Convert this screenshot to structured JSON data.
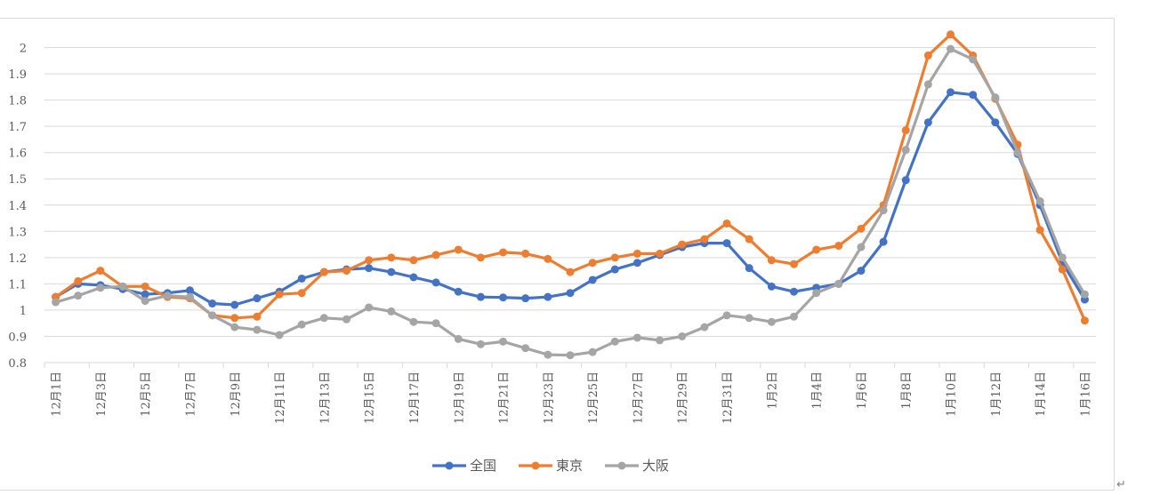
{
  "chart_data": {
    "type": "line",
    "title": "",
    "xlabel": "",
    "ylabel": "",
    "ylim": [
      0.8,
      2.1
    ],
    "yticks": [
      "0.8",
      "0.9",
      "1",
      "1.1",
      "1.2",
      "1.3",
      "1.4",
      "1.5",
      "1.6",
      "1.7",
      "1.8",
      "1.9",
      "2"
    ],
    "grid": "horizontal",
    "legend_position": "bottom",
    "categories": [
      "12月1日",
      "12月2日",
      "12月3日",
      "12月4日",
      "12月5日",
      "12月6日",
      "12月7日",
      "12月8日",
      "12月9日",
      "12月10日",
      "12月11日",
      "12月12日",
      "12月13日",
      "12月14日",
      "12月15日",
      "12月16日",
      "12月17日",
      "12月18日",
      "12月19日",
      "12月20日",
      "12月21日",
      "12月22日",
      "12月23日",
      "12月24日",
      "12月25日",
      "12月26日",
      "12月27日",
      "12月28日",
      "12月29日",
      "12月30日",
      "12月31日",
      "1月1日",
      "1月2日",
      "1月3日",
      "1月4日",
      "1月5日",
      "1月6日",
      "1月7日",
      "1月8日",
      "1月9日",
      "1月10日",
      "1月11日",
      "1月12日",
      "1月13日",
      "1月14日",
      "1月15日",
      "1月16日"
    ],
    "x_tick_labels": [
      "12月1日",
      "12月3日",
      "12月5日",
      "12月7日",
      "12月9日",
      "12月11日",
      "12月13日",
      "12月15日",
      "12月17日",
      "12月19日",
      "12月21日",
      "12月23日",
      "12月25日",
      "12月27日",
      "12月29日",
      "12月31日",
      "1月2日",
      "1月4日",
      "1月6日",
      "1月8日",
      "1月10日",
      "1月12日",
      "1月14日",
      "1月16日"
    ],
    "series": [
      {
        "name": "全国",
        "color": "#4472c4",
        "values": [
          1.05,
          1.1,
          1.095,
          1.08,
          1.06,
          1.065,
          1.075,
          1.025,
          1.02,
          1.045,
          1.07,
          1.12,
          1.145,
          1.155,
          1.16,
          1.145,
          1.125,
          1.105,
          1.07,
          1.05,
          1.048,
          1.045,
          1.05,
          1.065,
          1.115,
          1.155,
          1.18,
          1.21,
          1.24,
          1.255,
          1.255,
          1.16,
          1.09,
          1.07,
          1.085,
          1.1,
          1.15,
          1.26,
          1.495,
          1.715,
          1.83,
          1.82,
          1.715,
          1.595,
          1.4,
          1.18,
          1.04
        ]
      },
      {
        "name": "東京",
        "color": "#ed7d31",
        "values": [
          1.05,
          1.11,
          1.15,
          1.09,
          1.09,
          1.05,
          1.045,
          0.98,
          0.97,
          0.975,
          1.06,
          1.065,
          1.145,
          1.15,
          1.19,
          1.2,
          1.19,
          1.21,
          1.23,
          1.2,
          1.22,
          1.215,
          1.195,
          1.145,
          1.18,
          1.2,
          1.215,
          1.215,
          1.25,
          1.27,
          1.33,
          1.27,
          1.19,
          1.175,
          1.23,
          1.245,
          1.31,
          1.4,
          1.685,
          1.97,
          2.05,
          1.97,
          1.805,
          1.63,
          1.305,
          1.155,
          0.96
        ]
      },
      {
        "name": "大阪",
        "color": "#a5a5a5",
        "values": [
          1.03,
          1.055,
          1.085,
          1.09,
          1.035,
          1.055,
          1.05,
          0.98,
          0.935,
          0.925,
          0.905,
          0.945,
          0.97,
          0.965,
          1.01,
          0.995,
          0.955,
          0.95,
          0.89,
          0.87,
          0.88,
          0.855,
          0.83,
          0.828,
          0.84,
          0.88,
          0.895,
          0.885,
          0.9,
          0.935,
          0.98,
          0.97,
          0.955,
          0.975,
          1.065,
          1.1,
          1.24,
          1.38,
          1.61,
          1.86,
          1.995,
          1.955,
          1.81,
          1.6,
          1.415,
          1.2,
          1.06
        ]
      }
    ]
  }
}
